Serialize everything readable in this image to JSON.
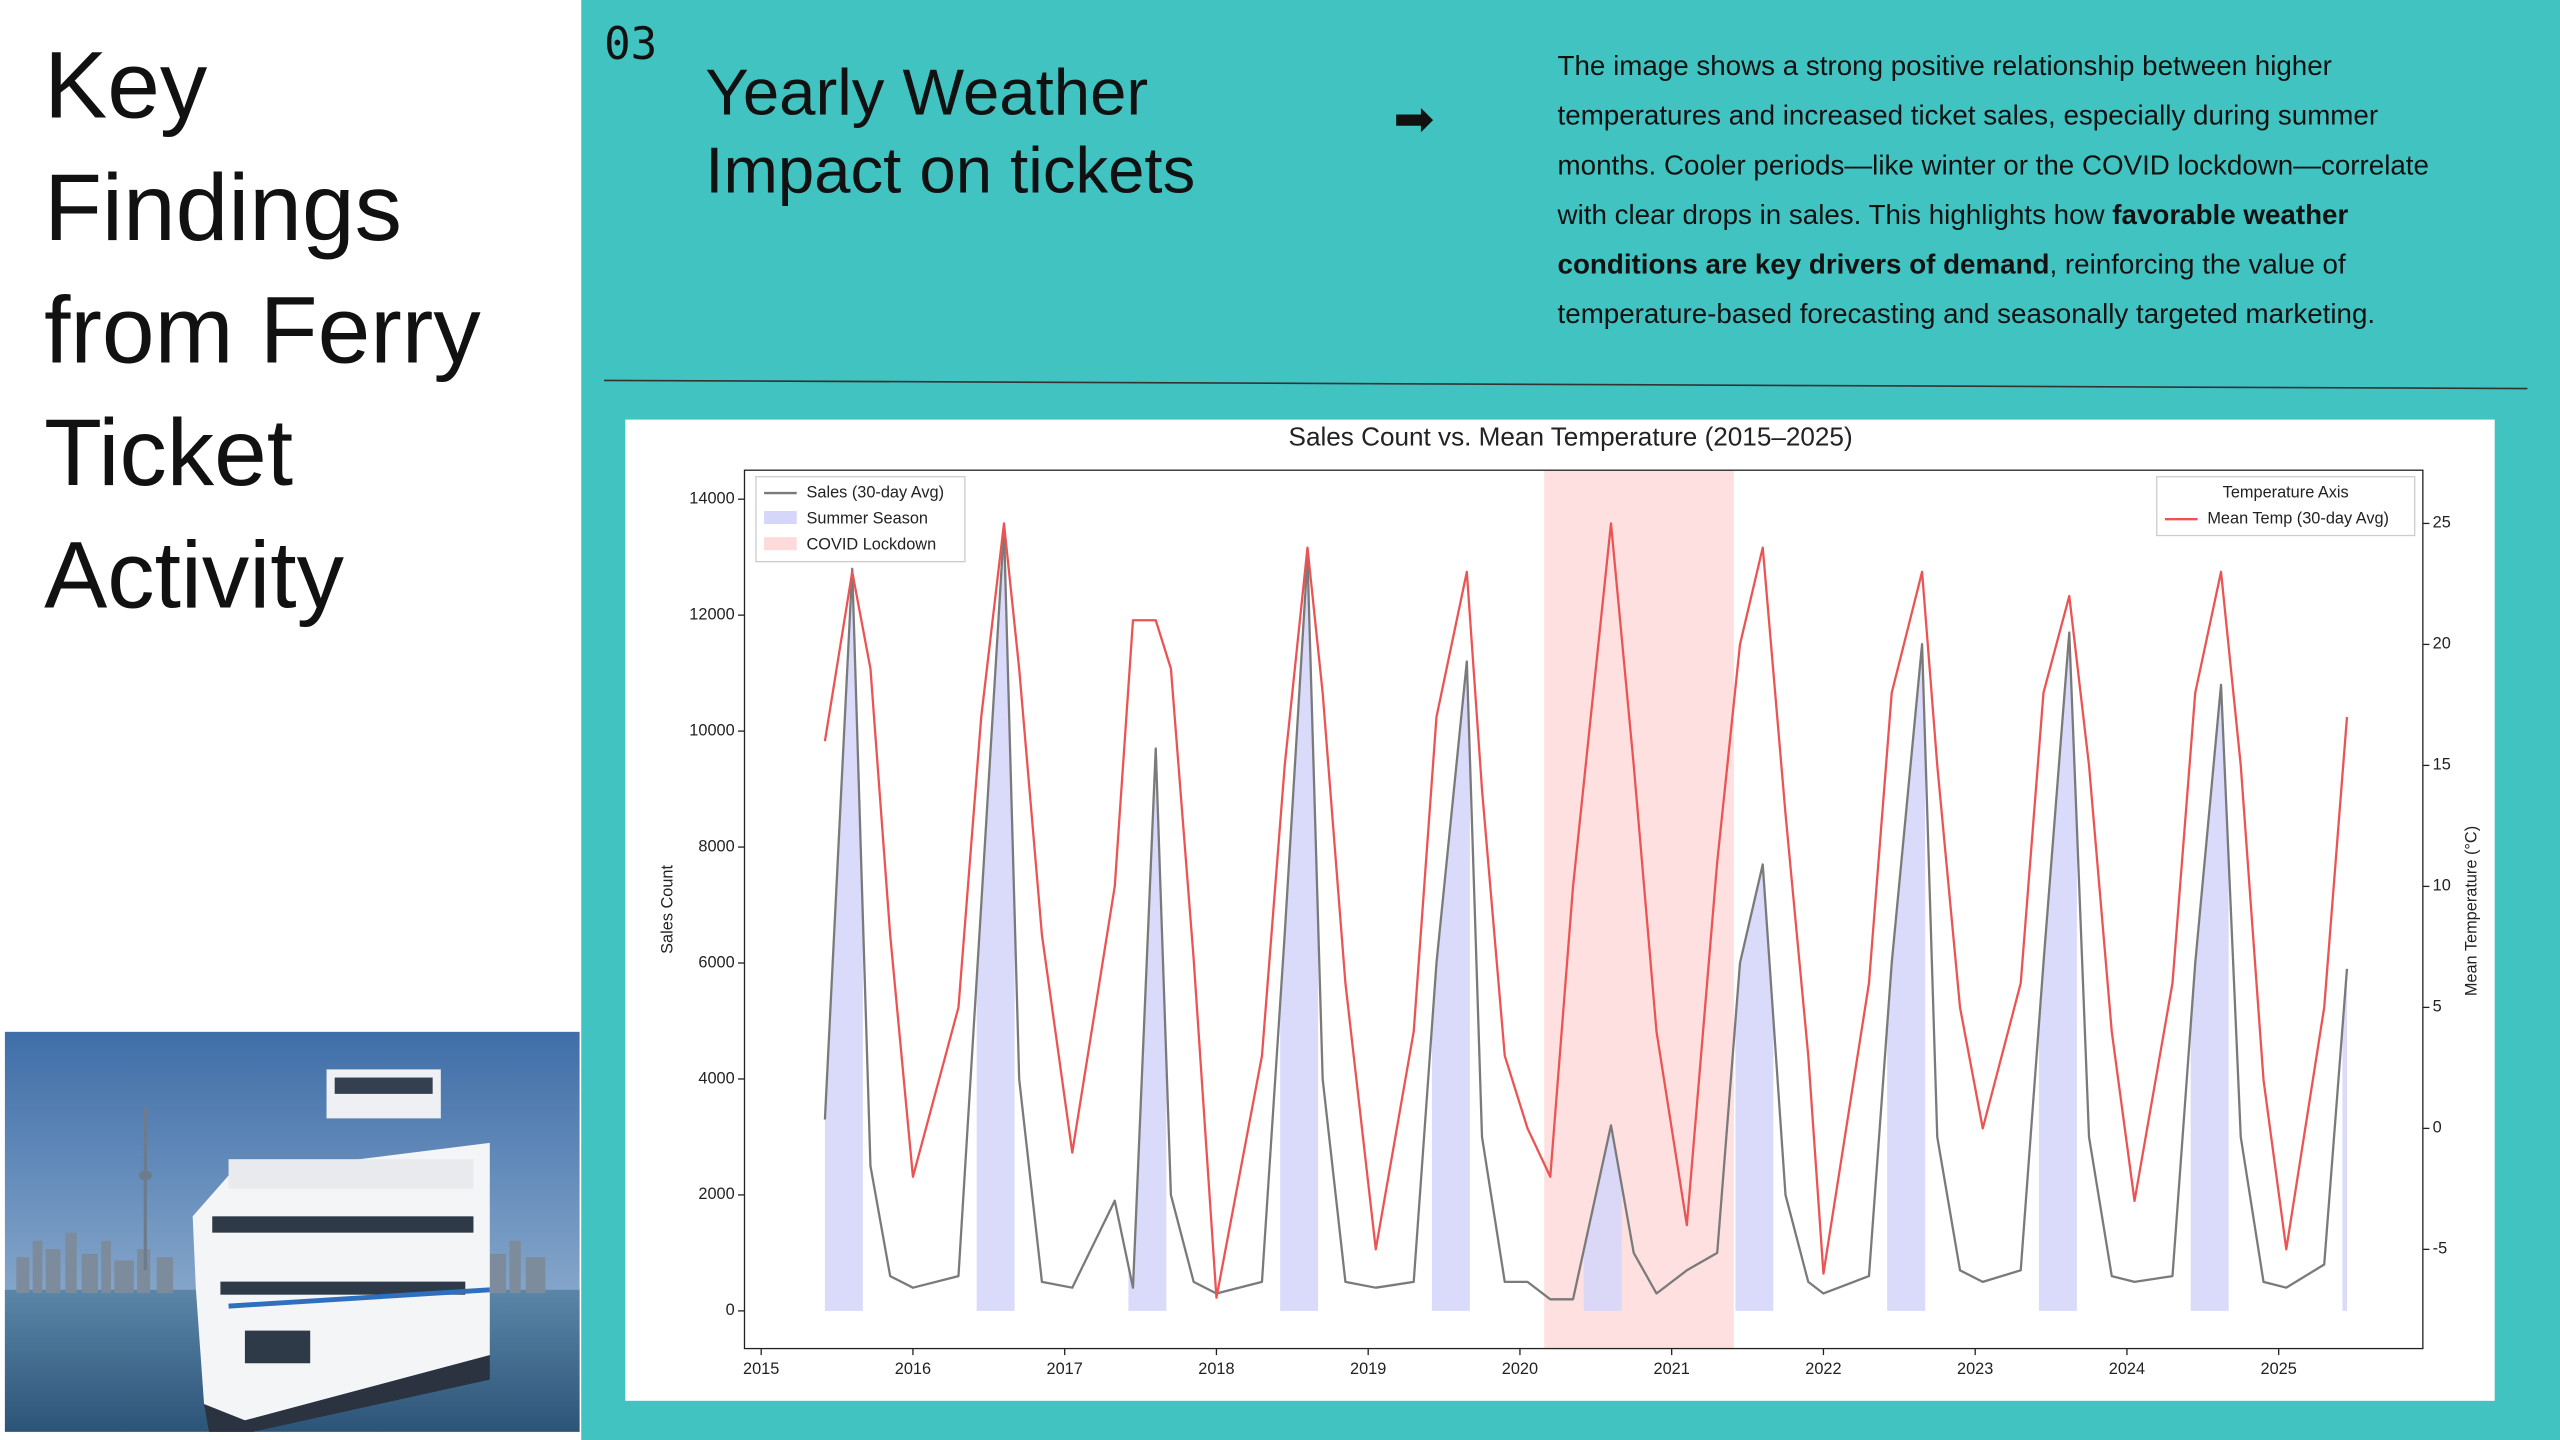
{
  "slide": {
    "title_lines": [
      "Key",
      "Findings",
      "from Ferry",
      "Ticket",
      "Activity"
    ],
    "section_number": "03",
    "heading_lines": [
      "Yearly Weather",
      "Impact on tickets"
    ],
    "arrow": "➡",
    "description": [
      [
        {
          "text": "The image shows a strong positive relationship between higher"
        }
      ],
      [
        {
          "text": "temperatures and increased ticket sales, especially during summer"
        }
      ],
      [
        {
          "text": "months. Cooler periods—like winter or the COVID lockdown—correlate"
        }
      ],
      [
        {
          "text": "with clear drops in sales. This highlights how "
        },
        {
          "text": "favorable weather",
          "bold": true
        }
      ],
      [
        {
          "text": "conditions are key drivers of demand",
          "bold": true
        },
        {
          "text": ", reinforcing the value of"
        }
      ],
      [
        {
          "text": "temperature-based forecasting and seasonally targeted marketing."
        }
      ]
    ]
  },
  "chart_data": {
    "type": "line",
    "title": "Sales Count vs. Mean Temperature (2015–2025)",
    "y_label": "Sales Count",
    "y2_label": "Mean Temperature (°C)",
    "x": [
      2015.42,
      2015.6,
      2015.72,
      2015.85,
      2016.0,
      2016.3,
      2016.45,
      2016.6,
      2016.7,
      2016.85,
      2017.05,
      2017.33,
      2017.45,
      2017.6,
      2017.7,
      2017.85,
      2018.0,
      2018.3,
      2018.45,
      2018.6,
      2018.7,
      2018.85,
      2019.05,
      2019.3,
      2019.45,
      2019.65,
      2019.75,
      2019.9,
      2020.05,
      2020.2,
      2020.35,
      2020.6,
      2020.75,
      2020.9,
      2021.1,
      2021.3,
      2021.45,
      2021.6,
      2021.75,
      2021.9,
      2022.0,
      2022.3,
      2022.45,
      2022.65,
      2022.75,
      2022.9,
      2023.05,
      2023.3,
      2023.45,
      2023.62,
      2023.75,
      2023.9,
      2024.05,
      2024.3,
      2024.45,
      2024.62,
      2024.75,
      2024.9,
      2025.05,
      2025.3,
      2025.45
    ],
    "series": [
      {
        "name": "Sales (30-day Avg)",
        "color": "#7a7a7a",
        "values": [
          3300,
          12800,
          2500,
          600,
          400,
          600,
          7000,
          13500,
          4000,
          500,
          400,
          1900,
          400,
          9700,
          2000,
          500,
          300,
          500,
          6500,
          13000,
          4000,
          500,
          400,
          500,
          6000,
          11200,
          3000,
          500,
          500,
          200,
          200,
          3200,
          1000,
          300,
          700,
          1000,
          6000,
          7700,
          2000,
          500,
          300,
          600,
          6000,
          11500,
          3000,
          700,
          500,
          700,
          6000,
          11700,
          3000,
          600,
          500,
          600,
          6000,
          10800,
          3000,
          500,
          400,
          800,
          5900
        ]
      },
      {
        "name": "Mean Temp (30-day Avg)",
        "color": "#ec5454",
        "axis": "y2",
        "values": [
          16,
          23,
          19,
          8,
          -2,
          5,
          17,
          25,
          19,
          8,
          -1,
          10,
          21,
          21,
          19,
          7,
          -7,
          3,
          15,
          24,
          18,
          6,
          -5,
          4,
          17,
          23,
          14,
          3,
          0,
          -2,
          10,
          25,
          15,
          4,
          -4,
          11,
          20,
          24,
          13,
          3,
          -6,
          6,
          18,
          23,
          15,
          5,
          0,
          6,
          18,
          22,
          15,
          4,
          -3,
          6,
          18,
          23,
          15,
          2,
          -5,
          5,
          17
        ]
      }
    ],
    "summer_label": "Summer Season",
    "summer_color": "#d6d6fa",
    "summer": [
      [
        2015.42,
        2015.67
      ],
      [
        2016.42,
        2016.67
      ],
      [
        2017.42,
        2017.67
      ],
      [
        2018.42,
        2018.67
      ],
      [
        2019.42,
        2019.67
      ],
      [
        2020.42,
        2020.67
      ],
      [
        2021.42,
        2021.67
      ],
      [
        2022.42,
        2022.67
      ],
      [
        2023.42,
        2023.67
      ],
      [
        2024.42,
        2024.67
      ],
      [
        2025.42,
        2025.45
      ]
    ],
    "covid_label": "COVID Lockdown",
    "covid_color": "#ffdada",
    "covid": [
      2020.16,
      2021.41
    ],
    "y2_legend_title": "Temperature Axis",
    "xlim": [
      2014.89,
      2025.95
    ],
    "xticks": [
      2015,
      2016,
      2017,
      2018,
      2019,
      2020,
      2021,
      2022,
      2023,
      2024,
      2025
    ],
    "ylim": [
      -650,
      14500
    ],
    "yticks": [
      0,
      2000,
      4000,
      6000,
      8000,
      10000,
      12000,
      14000
    ],
    "y2lim": [
      -9.1,
      27.2
    ],
    "y2ticks": [
      -5,
      0,
      5,
      10,
      15,
      20,
      25
    ]
  }
}
